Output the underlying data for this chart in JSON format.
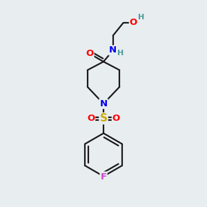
{
  "bg_color": "#e8edf0",
  "bond_color": "#1a1a1a",
  "atom_colors": {
    "O": "#ff0000",
    "N": "#0000ee",
    "S": "#ccaa00",
    "F": "#cc44cc",
    "H": "#4d9999",
    "C": "#1a1a1a"
  },
  "font_size": 9.5,
  "lw": 1.6
}
